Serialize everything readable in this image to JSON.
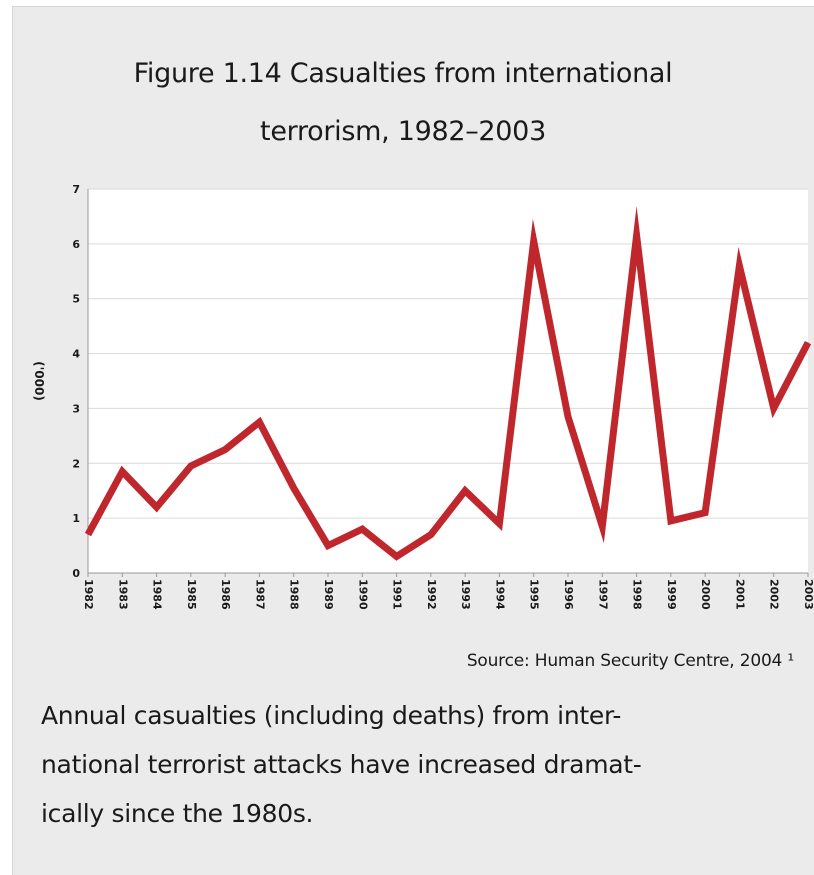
{
  "figure": {
    "title_line1": "Figure 1.14 Casualties from international",
    "title_line2": "terrorism, 1982–2003",
    "source": "Source: Human Security Centre, 2004 ¹",
    "caption_line1": "Annual casualties (including deaths) from inter-",
    "caption_line2": "national terrorist attacks have increased dramat-",
    "caption_line3": "ically since the 1980s."
  },
  "chart_data": {
    "type": "line",
    "title": "Figure 1.14 Casualties from international terrorism, 1982–2003",
    "xlabel": "",
    "ylabel": "('000)",
    "x": [
      "1982",
      "1983",
      "1984",
      "1985",
      "1986",
      "1987",
      "1988",
      "1989",
      "1990",
      "1991",
      "1992",
      "1993",
      "1994",
      "1995",
      "1996",
      "1997",
      "1998",
      "1999",
      "2000",
      "2001",
      "2002",
      "2003"
    ],
    "series": [
      {
        "values": [
          0.7,
          1.85,
          1.2,
          1.95,
          2.25,
          2.75,
          1.55,
          0.5,
          0.8,
          0.3,
          0.7,
          1.5,
          0.9,
          6.05,
          2.85,
          0.85,
          6.15,
          0.95,
          1.1,
          5.6,
          3.0,
          4.2
        ]
      }
    ],
    "ylim": [
      0,
      7
    ],
    "yticks": [
      0,
      1,
      2,
      3,
      4,
      5,
      6,
      7
    ],
    "grid": true,
    "line_color": "#c0272d",
    "plot_background": "#ffffff",
    "grid_color": "#d9d9d9"
  }
}
